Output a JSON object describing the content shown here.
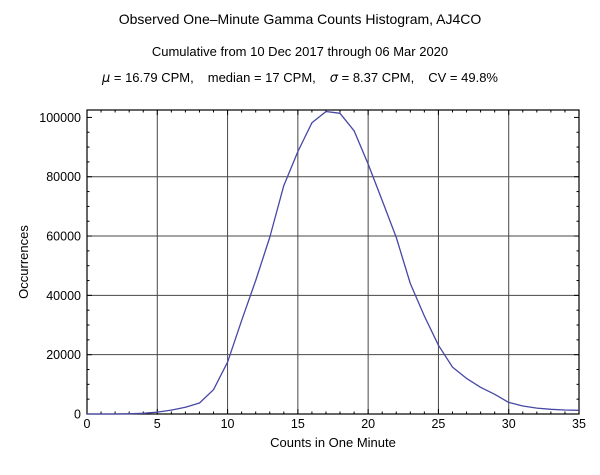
{
  "titles": {
    "main": "Observed One–Minute Gamma Counts Histogram, AJ4CO",
    "sub": "Cumulative from 10 Dec 2017 through 06 Mar 2020",
    "stats": {
      "mu_symbol": "μ",
      "mu_rest": " = 16.79 CPM,",
      "median": "median = 17 CPM,",
      "sigma_symbol": "σ",
      "sigma_rest": " = 8.37 CPM,",
      "cv": "CV = 49.8%"
    }
  },
  "chart_data": {
    "type": "line",
    "title": "Observed One–Minute Gamma Counts Histogram, AJ4CO",
    "subtitle": "Cumulative from 10 Dec 2017 through 06 Mar 2020",
    "stats_line": "μ = 16.79 CPM,   median = 17 CPM,   σ = 8.37 CPM,   CV = 49.8%",
    "xlabel": "Counts in One Minute",
    "ylabel": "Occurrences",
    "xlim": [
      0,
      35
    ],
    "ylim": [
      0,
      102500
    ],
    "grid": "on",
    "legend": "none",
    "x": [
      0,
      1,
      2,
      3,
      4,
      5,
      6,
      7,
      8,
      9,
      10,
      11,
      12,
      13,
      14,
      15,
      16,
      17,
      18,
      19,
      20,
      21,
      22,
      23,
      24,
      25,
      26,
      27,
      28,
      29,
      30,
      31,
      32,
      33,
      34,
      35
    ],
    "values": [
      0,
      0,
      0,
      60,
      250,
      650,
      1300,
      2300,
      3700,
      8200,
      17500,
      31500,
      45000,
      59500,
      77000,
      88500,
      98200,
      102000,
      101400,
      95500,
      84300,
      72000,
      59500,
      44000,
      33000,
      23200,
      15800,
      12000,
      9000,
      6650,
      3900,
      2700,
      2000,
      1600,
      1350,
      1250
    ],
    "x_major_ticks": [
      0,
      5,
      10,
      15,
      20,
      25,
      30,
      35
    ],
    "x_tick_labels": [
      "0",
      "5",
      "10",
      "15",
      "20",
      "25",
      "30",
      "35"
    ],
    "x_minor_ticks": [
      1,
      2,
      3,
      4,
      6,
      7,
      8,
      9,
      11,
      12,
      13,
      14,
      16,
      17,
      18,
      19,
      21,
      22,
      23,
      24,
      26,
      27,
      28,
      29,
      31,
      32,
      33,
      34
    ],
    "y_major_ticks": [
      0,
      20000,
      40000,
      60000,
      80000,
      100000
    ],
    "y_tick_labels": [
      "0",
      "20000",
      "40000",
      "60000",
      "80000",
      "100000"
    ],
    "y_minor_ticks": [
      5000,
      10000,
      15000,
      25000,
      30000,
      35000,
      45000,
      50000,
      55000,
      65000,
      70000,
      75000,
      85000,
      90000,
      95000
    ],
    "gridline_x": [
      5,
      10,
      15,
      20,
      25,
      30
    ],
    "gridline_y": [
      20000,
      40000,
      60000,
      80000
    ],
    "style": {
      "line_color": "#4747a5",
      "frame_color": "#000000",
      "grid_color": "#474747",
      "text_color": "#000000",
      "background": "#ffffff"
    }
  }
}
